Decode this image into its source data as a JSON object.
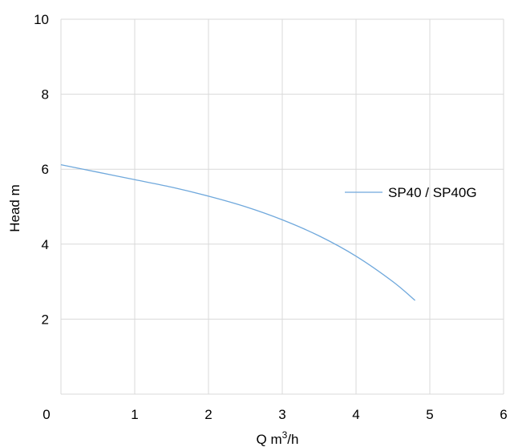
{
  "chart_data": {
    "type": "line",
    "title": "",
    "xlabel": "Q m",
    "xlabel_sup": "3",
    "xlabel_suffix": "/h",
    "ylabel": "Head m",
    "xlim": [
      0,
      6
    ],
    "ylim": [
      0,
      10
    ],
    "x_ticks": [
      "0",
      "1",
      "2",
      "3",
      "4",
      "5",
      "6"
    ],
    "y_ticks": [
      "2",
      "4",
      "6",
      "8",
      "10"
    ],
    "grid": true,
    "legend_position": "right",
    "series": [
      {
        "name": "SP40 / SP40G",
        "color": "#6fa8dc",
        "x": [
          0,
          0.5,
          1,
          1.5,
          2,
          2.5,
          3,
          3.5,
          4,
          4.5,
          4.8
        ],
        "y": [
          6.12,
          5.92,
          5.72,
          5.52,
          5.28,
          5.0,
          4.65,
          4.22,
          3.68,
          3.0,
          2.5
        ]
      }
    ]
  }
}
